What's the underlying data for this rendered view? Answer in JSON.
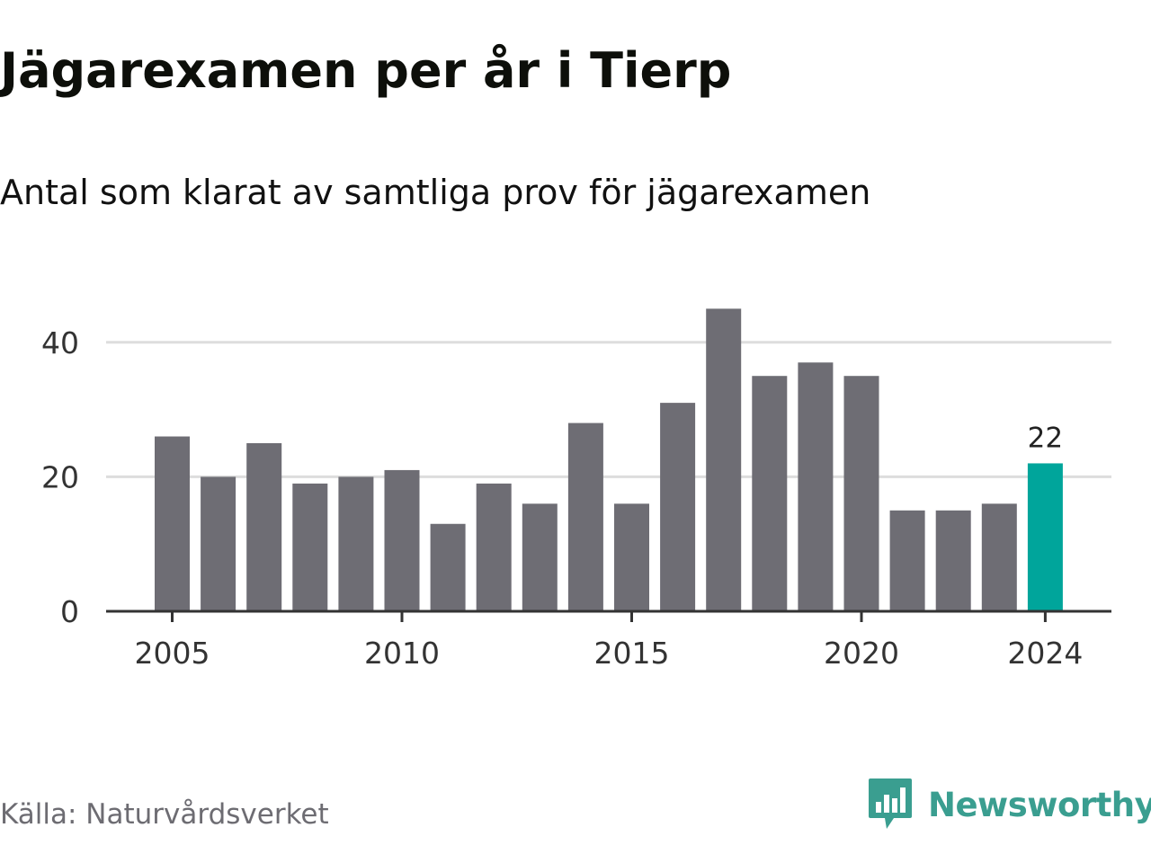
{
  "title": "Jägarexamen per år i Tierp",
  "subtitle": "Antal som klarat av samtliga prov för jägarexamen",
  "source": "Källa: Naturvårdsverket",
  "brand": {
    "name": "Newsworthy",
    "icon": "newsworthy-logo-icon",
    "color": "#3a9e90"
  },
  "colors": {
    "bar": "#6e6d74",
    "highlight": "#00a59b",
    "grid": "#dddddd",
    "axis": "#333333"
  },
  "chart_data": {
    "type": "bar",
    "title": "Jägarexamen per år i Tierp",
    "subtitle": "Antal som klarat av samtliga prov för jägarexamen",
    "xlabel": "",
    "ylabel": "",
    "categories": [
      2005,
      2006,
      2007,
      2008,
      2009,
      2010,
      2011,
      2012,
      2013,
      2014,
      2015,
      2016,
      2017,
      2018,
      2019,
      2020,
      2021,
      2022,
      2023,
      2024
    ],
    "values": [
      26,
      20,
      25,
      19,
      20,
      21,
      13,
      19,
      16,
      28,
      16,
      31,
      45,
      35,
      37,
      35,
      15,
      15,
      16,
      22
    ],
    "ylim": [
      0,
      45
    ],
    "yticks": [
      0,
      20,
      40
    ],
    "xtick_labels": [
      "2005",
      "2010",
      "2015",
      "2020",
      "2024"
    ],
    "highlight": {
      "category": 2024,
      "value": 22,
      "label": "22"
    },
    "grid": "horizontal",
    "legend": "none"
  }
}
